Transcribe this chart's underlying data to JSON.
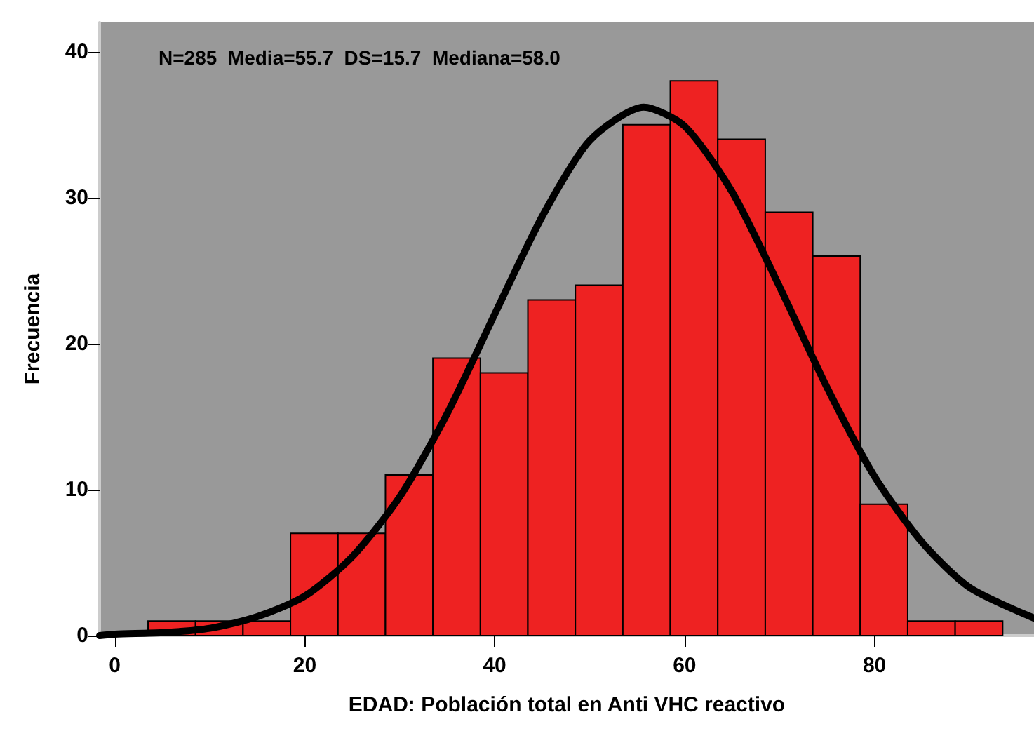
{
  "chart_data": {
    "type": "histogram",
    "xlabel": "EDAD: Población total en Anti VHC reactivo",
    "ylabel": "Frecuencia",
    "annotations": [
      "N=285  Media=55.7  DS=15.7  Mediana=58.0"
    ],
    "bins": [
      3.5,
      8.5,
      13.5,
      18.5,
      23.5,
      28.5,
      33.5,
      38.5,
      43.5,
      48.5,
      53.5,
      58.5,
      63.5,
      68.5,
      73.5,
      78.5,
      83.5,
      88.5,
      93.5
    ],
    "values": [
      1,
      1,
      1,
      7,
      7,
      11,
      19,
      18,
      23,
      24,
      35,
      38,
      34,
      29,
      26,
      9,
      1,
      1
    ],
    "color": "#ee2222",
    "series": [
      {
        "type": "line",
        "color": "#000000",
        "x": [
          -1.6,
          0,
          5,
          10,
          15,
          20,
          25,
          30,
          35,
          40,
          45,
          50,
          55.7,
          60,
          65,
          70,
          75,
          80,
          85,
          90,
          96.8
        ],
        "values": [
          0,
          0.1,
          0.2,
          0.5,
          1.3,
          2.7,
          5.4,
          9.5,
          15.2,
          22,
          28.7,
          33.9,
          36.2,
          34.9,
          30.4,
          23.9,
          17,
          10.9,
          6.4,
          3.3,
          1.2
        ]
      }
    ],
    "xlim": [
      -1.6,
      96.8
    ],
    "xticks": [
      0,
      20,
      40,
      60,
      80
    ],
    "ylim": [
      0,
      42
    ],
    "yticks": [
      0,
      10,
      20,
      30,
      40
    ],
    "grid": false
  }
}
